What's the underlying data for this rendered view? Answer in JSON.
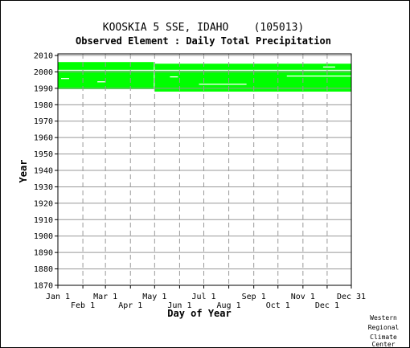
{
  "chart_data": {
    "type": "scatter",
    "title": "KOOSKIA 5 SSE, IDAHO    (105013)",
    "subtitle": "Observed Element : Daily Total Precipitation",
    "xlabel": "Day of Year",
    "ylabel": "Year",
    "xlim": [
      1,
      365
    ],
    "ylim": [
      1870,
      2011
    ],
    "y_ticks": [
      2010,
      2000,
      1990,
      1980,
      1970,
      1960,
      1950,
      1940,
      1930,
      1920,
      1910,
      1900,
      1890,
      1880,
      1870
    ],
    "x_ticks_upper": [
      {
        "label": "Jan 1",
        "day": 1
      },
      {
        "label": "Mar 1",
        "day": 60
      },
      {
        "label": "May 1",
        "day": 121
      },
      {
        "label": "Jul 1",
        "day": 182
      },
      {
        "label": "Sep 1",
        "day": 244
      },
      {
        "label": "Nov 1",
        "day": 305
      },
      {
        "label": "Dec 31",
        "day": 365
      }
    ],
    "x_ticks_lower": [
      {
        "label": "Feb 1",
        "day": 32
      },
      {
        "label": "Apr 1",
        "day": 91
      },
      {
        "label": "Jun 1",
        "day": 152
      },
      {
        "label": "Aug 1",
        "day": 213
      },
      {
        "label": "Oct 1",
        "day": 274
      },
      {
        "label": "Dec 1",
        "day": 335
      }
    ],
    "grid": true,
    "point_color": "#00ff00",
    "coverage": [
      {
        "day_start": 1,
        "day_end": 120,
        "year_start": 1989.5,
        "year_end": 2006
      },
      {
        "day_start": 121,
        "day_end": 365,
        "year_start": 1988,
        "year_end": 2005
      }
    ],
    "gaps": [
      {
        "day_start": 1,
        "day_end": 365,
        "year": 2001
      },
      {
        "day_start": 176,
        "day_end": 235,
        "year": 1992.5
      },
      {
        "day_start": 285,
        "day_end": 365,
        "year": 1997.5
      },
      {
        "day_start": 5,
        "day_end": 15,
        "year": 1996
      },
      {
        "day_start": 50,
        "day_end": 60,
        "year": 1994
      },
      {
        "day_start": 140,
        "day_end": 150,
        "year": 1997
      },
      {
        "day_start": 330,
        "day_end": 345,
        "year": 2003
      }
    ]
  },
  "credit": [
    "Western",
    "Regional",
    "Climate",
    "Center"
  ]
}
